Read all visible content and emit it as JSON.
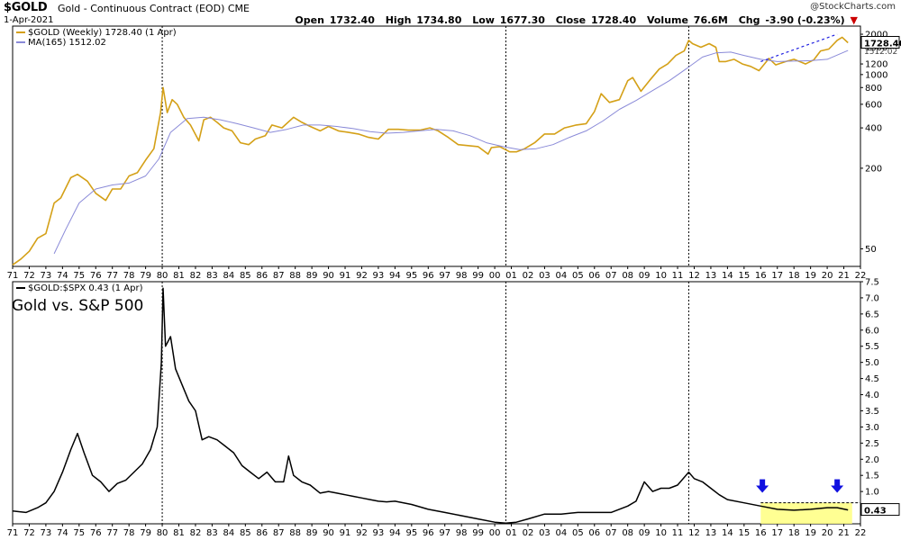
{
  "header": {
    "symbol": "$GOLD",
    "description": "Gold - Continuous Contract (EOD) CME",
    "date": "1-Apr-2021",
    "brand": "@StockCharts.com",
    "open_label": "Open",
    "open": "1732.40",
    "high_label": "High",
    "high": "1734.80",
    "low_label": "Low",
    "low": "1677.30",
    "close_label": "Close",
    "close": "1728.40",
    "volume_label": "Volume",
    "volume": "76.6M",
    "chg_label": "Chg",
    "chg": "-3.90 (-0.23%)"
  },
  "colors": {
    "gold": "#d4a017",
    "ma": "#8a8ad8",
    "ratio": "#000000",
    "highlight": "#ffff80",
    "arrow": "#1010e0"
  },
  "chart_data": [
    {
      "type": "line",
      "title": "",
      "yscale": "log",
      "ylim": [
        37,
        2300
      ],
      "x_tick_labels": [
        "71",
        "72",
        "73",
        "74",
        "75",
        "76",
        "77",
        "78",
        "79",
        "80",
        "81",
        "82",
        "83",
        "84",
        "85",
        "86",
        "87",
        "88",
        "89",
        "90",
        "91",
        "92",
        "93",
        "94",
        "95",
        "96",
        "97",
        "98",
        "99",
        "00",
        "01",
        "02",
        "03",
        "04",
        "05",
        "06",
        "07",
        "08",
        "09",
        "10",
        "11",
        "12",
        "13",
        "14",
        "15",
        "16",
        "17",
        "18",
        "19",
        "20",
        "21",
        "22"
      ],
      "y_tick_labels": [
        "2000",
        "1600",
        "1200",
        "1000",
        "800",
        "600",
        "400",
        "200",
        "50"
      ],
      "y_ticks": [
        2000,
        1600,
        1200,
        1000,
        800,
        600,
        400,
        200,
        50
      ],
      "xlim": [
        1971.0,
        2022.0
      ],
      "vlines": [
        1980.0,
        2000.67,
        2011.67
      ],
      "series": [
        {
          "name": "$GOLD (Weekly) 1728.40 (1 Apr)",
          "legend_label": "$GOLD (Weekly) 1728.40 (1 Apr)",
          "x": [
            1971.0,
            1971.5,
            1972.0,
            1972.5,
            1973.0,
            1973.5,
            1973.9,
            1974.5,
            1974.9,
            1975.5,
            1976.0,
            1976.6,
            1977.0,
            1977.5,
            1978.0,
            1978.5,
            1979.0,
            1979.5,
            1979.9,
            1980.05,
            1980.3,
            1980.6,
            1980.9,
            1981.3,
            1981.7,
            1982.2,
            1982.5,
            1982.9,
            1983.3,
            1983.7,
            1984.2,
            1984.7,
            1985.2,
            1985.6,
            1986.2,
            1986.6,
            1987.2,
            1987.9,
            1988.4,
            1988.9,
            1989.5,
            1990.0,
            1990.6,
            1991.2,
            1991.8,
            1992.4,
            1993.0,
            1993.6,
            1994.2,
            1994.8,
            1995.5,
            1996.1,
            1996.6,
            1997.2,
            1997.8,
            1998.4,
            1999.0,
            1999.6,
            1999.8,
            2000.3,
            2000.9,
            2001.3,
            2001.8,
            2002.4,
            2003.0,
            2003.6,
            2004.2,
            2004.9,
            2005.5,
            2006.0,
            2006.4,
            2006.9,
            2007.5,
            2008.0,
            2008.3,
            2008.8,
            2009.3,
            2009.9,
            2010.4,
            2010.9,
            2011.4,
            2011.67,
            2011.9,
            2012.4,
            2012.9,
            2013.3,
            2013.5,
            2013.9,
            2014.4,
            2014.9,
            2015.4,
            2015.9,
            2016.5,
            2016.9,
            2017.5,
            2018.0,
            2018.7,
            2019.2,
            2019.6,
            2020.1,
            2020.6,
            2020.9,
            2021.25
          ],
          "y": [
            38,
            42,
            48,
            60,
            65,
            110,
            120,
            170,
            180,
            160,
            130,
            115,
            140,
            140,
            175,
            185,
            230,
            280,
            520,
            800,
            520,
            650,
            600,
            480,
            420,
            320,
            460,
            480,
            440,
            400,
            380,
            310,
            300,
            330,
            350,
            420,
            400,
            480,
            440,
            410,
            380,
            410,
            380,
            370,
            360,
            340,
            330,
            390,
            390,
            385,
            385,
            400,
            380,
            340,
            300,
            295,
            290,
            255,
            285,
            290,
            265,
            265,
            280,
            310,
            360,
            360,
            400,
            420,
            430,
            530,
            720,
            620,
            650,
            900,
            950,
            750,
            900,
            1100,
            1200,
            1390,
            1500,
            1800,
            1700,
            1600,
            1700,
            1600,
            1250,
            1250,
            1300,
            1200,
            1150,
            1070,
            1320,
            1180,
            1250,
            1300,
            1200,
            1290,
            1500,
            1550,
            1800,
            1900,
            1728
          ]
        },
        {
          "name": "MA(165) 1512.02",
          "legend_label": "MA(165) 1512.02",
          "x": [
            1973.5,
            1974.2,
            1975.0,
            1976.0,
            1977.0,
            1978.0,
            1979.0,
            1979.8,
            1980.5,
            1981.5,
            1982.5,
            1983.5,
            1984.5,
            1985.5,
            1986.5,
            1987.5,
            1988.5,
            1989.5,
            1990.5,
            1991.5,
            1992.5,
            1993.5,
            1994.5,
            1995.5,
            1996.5,
            1997.5,
            1998.5,
            1999.5,
            2000.5,
            2001.5,
            2002.5,
            2003.5,
            2004.5,
            2005.5,
            2006.5,
            2007.5,
            2008.5,
            2009.5,
            2010.5,
            2011.5,
            2012.5,
            2013.3,
            2014.2,
            2015.0,
            2016.0,
            2017.0,
            2018.0,
            2019.0,
            2020.0,
            2021.25
          ],
          "y": [
            46,
            70,
            110,
            140,
            150,
            155,
            175,
            235,
            370,
            470,
            480,
            460,
            430,
            400,
            370,
            390,
            420,
            420,
            410,
            395,
            375,
            365,
            370,
            380,
            390,
            380,
            350,
            310,
            290,
            275,
            280,
            300,
            340,
            380,
            450,
            550,
            640,
            760,
            900,
            1100,
            1350,
            1450,
            1470,
            1390,
            1300,
            1250,
            1260,
            1270,
            1300,
            1512
          ]
        }
      ],
      "annotations": {
        "trendline_start": [
          2016.0,
          1250
        ],
        "trendline_end": [
          2020.6,
          2000
        ],
        "value_badge": "1728.40",
        "ma_badge": "1512.02"
      }
    },
    {
      "type": "line",
      "title": "Gold vs. S&P 500",
      "yscale": "linear",
      "ylim": [
        0.0,
        7.5
      ],
      "x_tick_labels": [
        "71",
        "72",
        "73",
        "74",
        "75",
        "76",
        "77",
        "78",
        "79",
        "80",
        "81",
        "82",
        "83",
        "84",
        "85",
        "86",
        "87",
        "88",
        "89",
        "90",
        "91",
        "92",
        "93",
        "94",
        "95",
        "96",
        "97",
        "98",
        "99",
        "00",
        "01",
        "02",
        "03",
        "04",
        "05",
        "06",
        "07",
        "08",
        "09",
        "10",
        "11",
        "12",
        "13",
        "14",
        "15",
        "16",
        "17",
        "18",
        "19",
        "20",
        "21",
        "22"
      ],
      "y_tick_labels": [
        "7.5",
        "7.0",
        "6.5",
        "6.0",
        "5.5",
        "5.0",
        "4.5",
        "4.0",
        "3.5",
        "3.0",
        "2.5",
        "2.0",
        "1.5",
        "1.0",
        "0.5"
      ],
      "y_ticks": [
        7.5,
        7.0,
        6.5,
        6.0,
        5.5,
        5.0,
        4.5,
        4.0,
        3.5,
        3.0,
        2.5,
        2.0,
        1.5,
        1.0,
        0.5
      ],
      "xlim": [
        1971.0,
        2022.0
      ],
      "vlines": [
        1980.0,
        2000.67,
        2011.67
      ],
      "series": [
        {
          "name": "$GOLD:$SPX 0.43 (1 Apr)",
          "legend_label": "$GOLD:$SPX 0.43 (1 Apr)",
          "x": [
            1971.0,
            1971.8,
            1972.5,
            1973.0,
            1973.5,
            1974.0,
            1974.5,
            1974.9,
            1975.3,
            1975.8,
            1976.3,
            1976.8,
            1977.3,
            1977.8,
            1978.3,
            1978.8,
            1979.3,
            1979.7,
            1979.95,
            1980.05,
            1980.2,
            1980.5,
            1980.8,
            1981.2,
            1981.6,
            1982.0,
            1982.4,
            1982.8,
            1983.3,
            1983.8,
            1984.3,
            1984.8,
            1985.3,
            1985.8,
            1986.3,
            1986.8,
            1987.3,
            1987.6,
            1987.9,
            1988.4,
            1988.9,
            1989.5,
            1990.0,
            1990.5,
            1991.0,
            1991.5,
            1992.0,
            1992.5,
            1993.0,
            1993.5,
            1994.0,
            1995.0,
            1996.0,
            1997.0,
            1998.0,
            1999.0,
            2000.0,
            2000.67,
            2001.3,
            2002.0,
            2003.0,
            2004.0,
            2005.0,
            2006.0,
            2007.0,
            2008.0,
            2008.5,
            2009.0,
            2009.5,
            2010.0,
            2010.5,
            2011.0,
            2011.67,
            2012.0,
            2012.5,
            2013.0,
            2013.5,
            2014.0,
            2015.0,
            2016.0,
            2017.0,
            2018.0,
            2019.0,
            2020.0,
            2020.6,
            2021.25
          ],
          "y": [
            0.4,
            0.35,
            0.5,
            0.65,
            1.0,
            1.6,
            2.3,
            2.8,
            2.2,
            1.5,
            1.3,
            1.0,
            1.25,
            1.35,
            1.6,
            1.85,
            2.3,
            3.0,
            5.0,
            7.3,
            5.5,
            5.8,
            4.8,
            4.3,
            3.8,
            3.5,
            2.6,
            2.7,
            2.6,
            2.4,
            2.2,
            1.8,
            1.6,
            1.4,
            1.6,
            1.3,
            1.3,
            2.1,
            1.5,
            1.3,
            1.2,
            0.95,
            1.0,
            0.95,
            0.9,
            0.85,
            0.8,
            0.75,
            0.7,
            0.68,
            0.7,
            0.6,
            0.45,
            0.35,
            0.25,
            0.15,
            0.05,
            0.02,
            0.05,
            0.15,
            0.3,
            0.3,
            0.35,
            0.35,
            0.35,
            0.55,
            0.7,
            1.3,
            1.0,
            1.1,
            1.1,
            1.2,
            1.6,
            1.4,
            1.3,
            1.1,
            0.9,
            0.75,
            0.65,
            0.55,
            0.45,
            0.42,
            0.45,
            0.5,
            0.5,
            0.43
          ]
        }
      ],
      "annotations": {
        "value_badge": "0.43",
        "highlight_x": [
          2016.0,
          2021.5
        ],
        "highlight_y": [
          0.0,
          0.65
        ],
        "arrows_x": [
          2016.1,
          2020.6
        ],
        "hline_y": 0.65
      }
    }
  ]
}
